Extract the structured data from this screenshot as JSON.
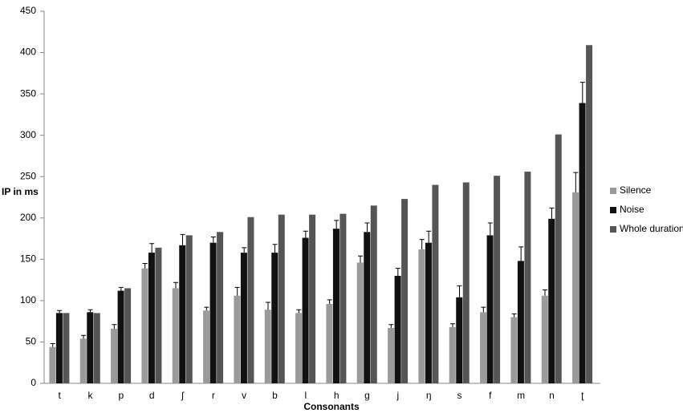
{
  "chart_data": {
    "type": "bar",
    "y_label": "IP in ms",
    "x_label": "Consonants",
    "categories": [
      "t",
      "k",
      "p",
      "d",
      "ʃ",
      "r",
      "v",
      "b",
      "l",
      "h",
      "g",
      "j",
      "ŋ",
      "s",
      "f",
      "m",
      "n",
      "ʈ"
    ],
    "series": [
      {
        "name": "Silence",
        "color": "#9a9a9a",
        "values": [
          44,
          54,
          66,
          139,
          115,
          88,
          106,
          89,
          85,
          96,
          146,
          67,
          162,
          68,
          86,
          80,
          106,
          231
        ],
        "errors": [
          4,
          4,
          5,
          6,
          7,
          4,
          10,
          9,
          4,
          5,
          8,
          4,
          12,
          4,
          6,
          4,
          7,
          24
        ]
      },
      {
        "name": "Noise",
        "color": "#111111",
        "values": [
          85,
          86,
          112,
          158,
          167,
          170,
          158,
          158,
          176,
          187,
          183,
          130,
          170,
          104,
          179,
          148,
          199,
          339
        ],
        "errors": [
          3,
          3,
          4,
          11,
          13,
          7,
          6,
          10,
          8,
          10,
          11,
          9,
          14,
          14,
          15,
          17,
          13,
          25
        ]
      },
      {
        "name": "Whole duration",
        "color": "#555555",
        "values": [
          85,
          85,
          115,
          164,
          179,
          183,
          201,
          204,
          204,
          205,
          215,
          223,
          240,
          243,
          251,
          256,
          301,
          409
        ]
      }
    ],
    "ylim": [
      0,
      450
    ],
    "yticks": [
      0,
      50,
      100,
      150,
      200,
      250,
      300,
      350,
      400,
      450
    ],
    "grid": false,
    "legend": "right"
  }
}
